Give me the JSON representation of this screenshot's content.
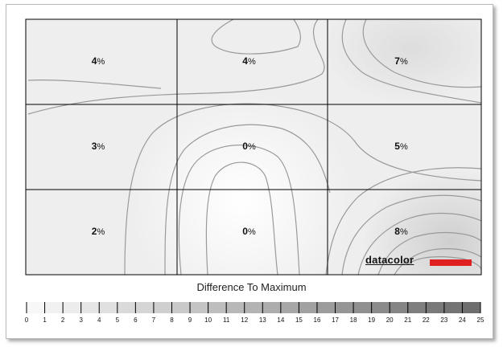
{
  "chart_data": {
    "type": "heatmap",
    "title": "",
    "rows": 3,
    "cols": 3,
    "cells": [
      [
        {
          "value": 4,
          "label": "4"
        },
        {
          "value": 4,
          "label": "4"
        },
        {
          "value": 7,
          "label": "7"
        }
      ],
      [
        {
          "value": 3,
          "label": "3"
        },
        {
          "value": 0,
          "label": "0"
        },
        {
          "value": 5,
          "label": "5"
        }
      ],
      [
        {
          "value": 2,
          "label": "2"
        },
        {
          "value": 0,
          "label": "0"
        },
        {
          "value": 8,
          "label": "8"
        }
      ]
    ],
    "unit": "%",
    "legend": {
      "title": "Difference To Maximum",
      "min": 0,
      "max": 25,
      "ticks": [
        "0",
        "1",
        "2",
        "3",
        "4",
        "5",
        "6",
        "7",
        "8",
        "9",
        "10",
        "11",
        "12",
        "13",
        "14",
        "15",
        "16",
        "17",
        "18",
        "19",
        "20",
        "21",
        "22",
        "23",
        "24",
        "25"
      ]
    },
    "colors": {
      "light": "#f7f7f7",
      "dark": "#6e6e6e",
      "contour": "#9a9a9a",
      "grid": "#000000",
      "brand_red": "#e02020"
    }
  },
  "brand": {
    "name": "datacolor"
  }
}
